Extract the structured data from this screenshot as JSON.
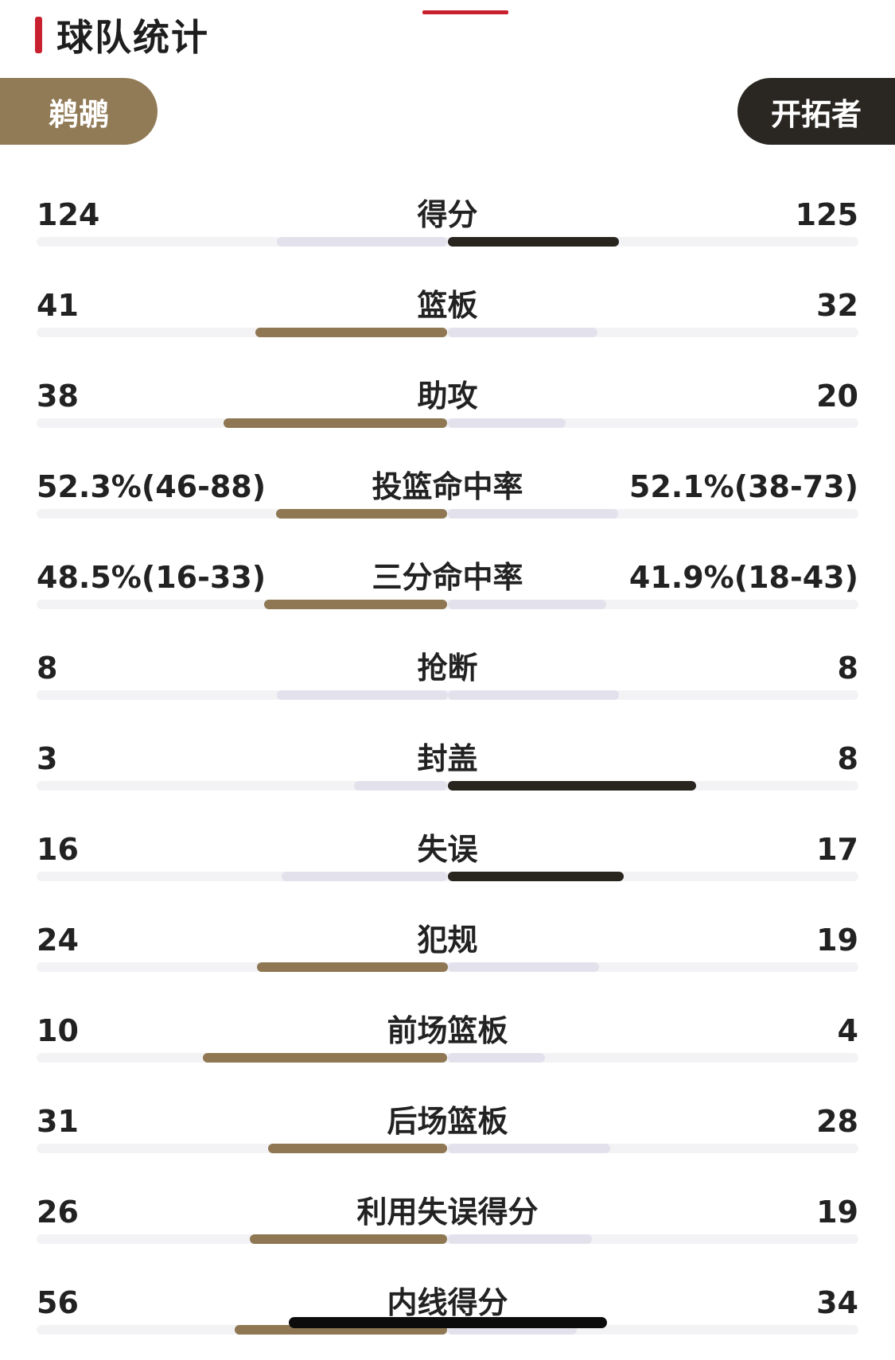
{
  "header": {
    "title": "球队统计"
  },
  "teams": {
    "home": "鹈鹕",
    "away": "开拓者"
  },
  "colors": {
    "accent_red": "#c8202e",
    "home": "#8e7752",
    "away": "#28251f",
    "bar_light": "#e3e2ec",
    "track": "#f3f3f6"
  },
  "stats": [
    {
      "label": "得分",
      "home": "124",
      "away": "125",
      "home_num": 124,
      "away_num": 125
    },
    {
      "label": "篮板",
      "home": "41",
      "away": "32",
      "home_num": 41,
      "away_num": 32
    },
    {
      "label": "助攻",
      "home": "38",
      "away": "20",
      "home_num": 38,
      "away_num": 20
    },
    {
      "label": "投篮命中率",
      "home": "52.3%(46-88)",
      "away": "52.1%(38-73)",
      "home_num": 52.3,
      "away_num": 52.1
    },
    {
      "label": "三分命中率",
      "home": "48.5%(16-33)",
      "away": "41.9%(18-43)",
      "home_num": 48.5,
      "away_num": 41.9
    },
    {
      "label": "抢断",
      "home": "8",
      "away": "8",
      "home_num": 8,
      "away_num": 8
    },
    {
      "label": "封盖",
      "home": "3",
      "away": "8",
      "home_num": 3,
      "away_num": 8
    },
    {
      "label": "失误",
      "home": "16",
      "away": "17",
      "home_num": 16,
      "away_num": 17
    },
    {
      "label": "犯规",
      "home": "24",
      "away": "19",
      "home_num": 24,
      "away_num": 19
    },
    {
      "label": "前场篮板",
      "home": "10",
      "away": "4",
      "home_num": 10,
      "away_num": 4
    },
    {
      "label": "后场篮板",
      "home": "31",
      "away": "28",
      "home_num": 31,
      "away_num": 28
    },
    {
      "label": "利用失误得分",
      "home": "26",
      "away": "19",
      "home_num": 26,
      "away_num": 19
    },
    {
      "label": "内线得分",
      "home": "56",
      "away": "34",
      "home_num": 56,
      "away_num": 34
    }
  ]
}
